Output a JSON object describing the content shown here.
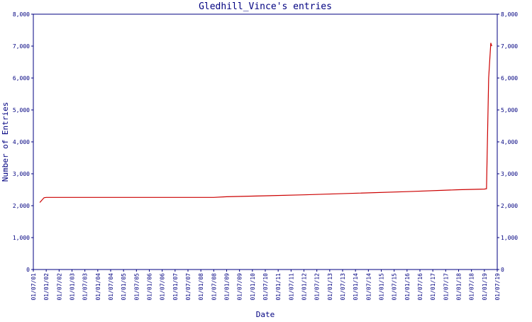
{
  "chart_data": {
    "type": "line",
    "title": "Gledhill_Vince's entries",
    "x_label": "Date",
    "y_label": "Number of Entries",
    "xlim": [
      "01/07/01",
      "01/07/19"
    ],
    "xticks": [
      "01/07/01",
      "01/01/02",
      "01/07/02",
      "01/01/03",
      "01/07/03",
      "01/01/04",
      "01/07/04",
      "01/01/05",
      "01/07/05",
      "01/01/06",
      "01/07/06",
      "01/01/07",
      "01/07/07",
      "01/01/08",
      "01/07/08",
      "01/01/09",
      "01/07/09",
      "01/01/10",
      "01/07/10",
      "01/01/11",
      "01/07/11",
      "01/01/12",
      "01/07/12",
      "01/01/13",
      "01/07/13",
      "01/01/14",
      "01/07/14",
      "01/01/15",
      "01/07/15",
      "01/01/16",
      "01/07/16",
      "01/01/17",
      "01/07/17",
      "01/01/18",
      "01/07/18",
      "01/01/19",
      "01/07/19"
    ],
    "ylim": [
      0,
      8000
    ],
    "yticks": [
      0,
      {
        "value": 1000,
        "label": "1,000"
      },
      {
        "value": 2000,
        "label": "2,000"
      },
      {
        "value": 3000,
        "label": "3,000"
      },
      {
        "value": 4000,
        "label": "4,000"
      },
      {
        "value": 5000,
        "label": "5,000"
      },
      {
        "value": 6000,
        "label": "6,000"
      },
      {
        "value": 7000,
        "label": "7,000"
      },
      {
        "value": 8000,
        "label": "8,000"
      }
    ],
    "series": [
      {
        "color": "#cc0000",
        "x": [
          "01/10/01",
          "01/12/01",
          "01/01/02",
          "01/07/08",
          "01/01/09",
          "01/01/10",
          "01/01/12",
          "01/01/14",
          "01/01/16",
          "01/01/18",
          "01/01/19",
          "01/02/19",
          "01/03/19",
          "01/04/19",
          "15/04/19"
        ],
        "values": [
          2100,
          2250,
          2260,
          2260,
          2280,
          2300,
          2340,
          2390,
          2440,
          2500,
          2520,
          2530,
          6000,
          7100,
          7000
        ]
      }
    ]
  }
}
